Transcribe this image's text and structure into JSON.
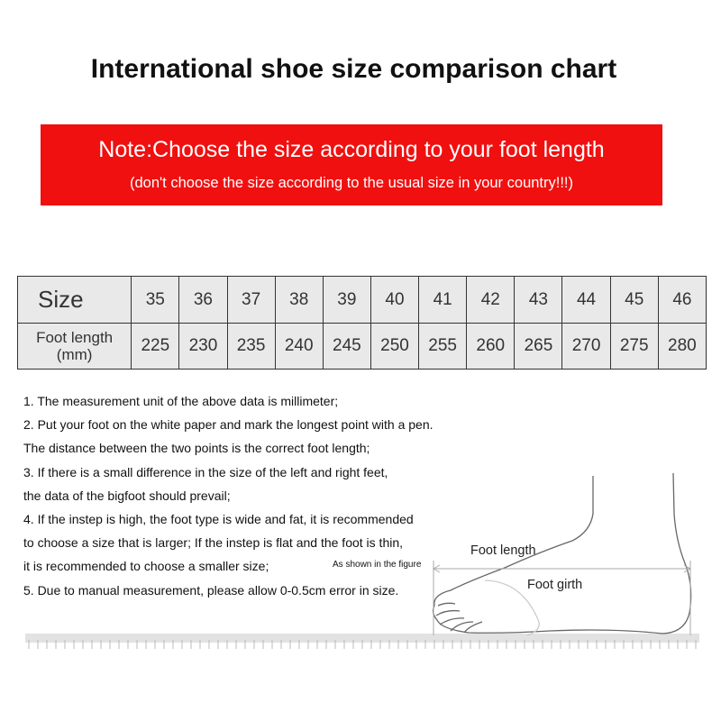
{
  "title": "International shoe size comparison chart",
  "note": {
    "line1": "Note:Choose the size according to your foot length",
    "line2": "(don't choose the size according to the usual size in your country!!!)",
    "bg_color": "#f01010"
  },
  "table": {
    "row1_header": "Size",
    "row2_header_line1": "Foot length",
    "row2_header_line2": "(mm)",
    "sizes": [
      "35",
      "36",
      "37",
      "38",
      "39",
      "40",
      "41",
      "42",
      "43",
      "44",
      "45",
      "46"
    ],
    "lengths": [
      "225",
      "230",
      "235",
      "240",
      "245",
      "250",
      "255",
      "260",
      "265",
      "270",
      "275",
      "280"
    ]
  },
  "notes": [
    "1. The measurement unit of the above data is millimeter;",
    "2. Put your foot on the white paper and mark the longest point with a pen.",
    "The distance between the two points is the correct foot length;",
    "3. If there is a small difference in the size of the left and right feet,",
    "the data of the bigfoot should prevail;",
    "4. If the instep is high, the foot type is wide and fat, it is recommended",
    "to choose a size that is larger; If the instep is flat and the foot is thin,",
    "it is recommended to choose a smaller size;",
    "5.  Due to manual measurement, please allow 0-0.5cm error in size."
  ],
  "figure": {
    "caption": "As shown in the figure",
    "foot_length_label": "Foot length",
    "foot_girth_label": "Foot girth"
  }
}
